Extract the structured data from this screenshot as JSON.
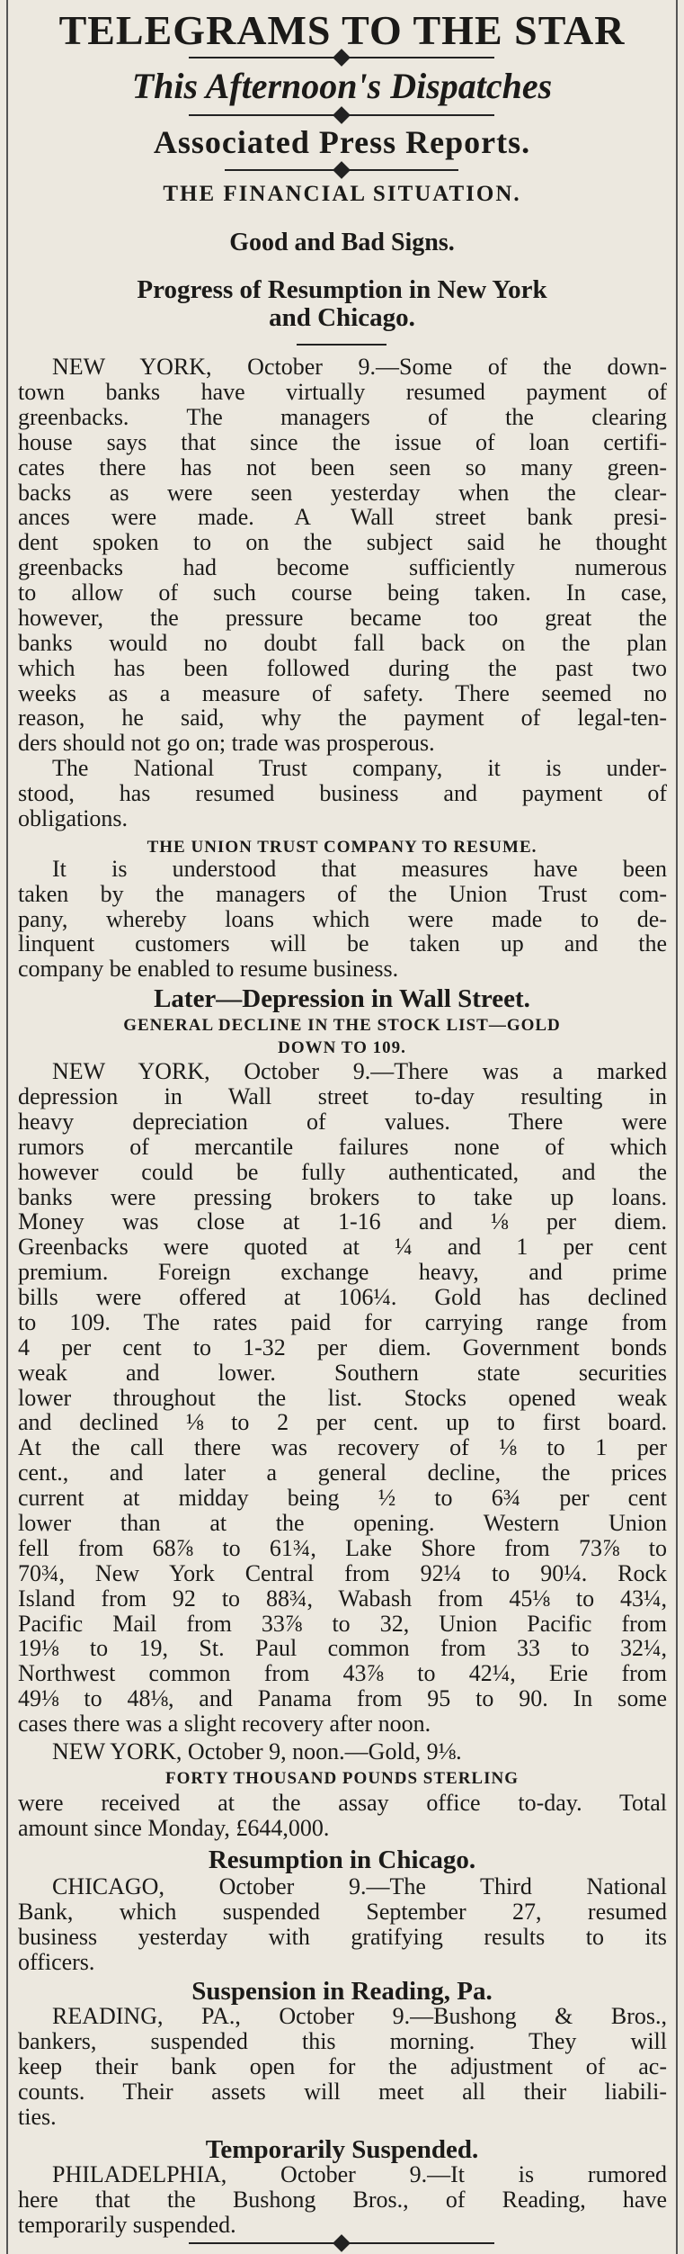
{
  "masthead": {
    "title": "TELEGRAMS TO THE STAR",
    "subtitle": "This Afternoon's Dispatches",
    "credit": "Associated Press Reports."
  },
  "section": {
    "title": "THE FINANCIAL SITUATION.",
    "deck": "Good and Bad Signs.",
    "headline": [
      "Progress of Resumption in New York",
      "and Chicago."
    ]
  },
  "new_york": {
    "paragraphs": [
      [
        "NEW YORK, October 9.—Some of the down-",
        "town banks have virtually resumed payment of",
        "greenbacks. The managers of the clearing",
        "house says that since the issue of loan certifi-",
        "cates there has not been seen so many green-",
        "backs as were seen yesterday when the clear-",
        "ances were made. A Wall street bank presi-",
        "dent spoken to on the subject said he thought",
        "greenbacks had become sufficiently numerous",
        "to allow of such course being taken. In case,",
        "however, the pressure became too great the",
        "banks would no doubt fall back on the plan",
        "which has been followed during the past two",
        "weeks as a measure of safety. There seemed no",
        "reason, he said, why the payment of legal-ten-",
        "ders should not go on; trade was prosperous."
      ],
      [
        "The National Trust company, it is under-",
        "stood, has resumed business and payment of",
        "obligations."
      ]
    ],
    "subhead": "THE UNION TRUST COMPANY TO RESUME.",
    "union_trust": [
      "It is understood that measures have been",
      "taken by the managers of the Union Trust com-",
      "pany, whereby loans which were made to de-",
      "linquent customers will be taken up and the",
      "company be enabled to resume business."
    ]
  },
  "wall_street": {
    "headline": "Later—Depression in Wall Street.",
    "subhead": [
      "GENERAL DECLINE IN THE STOCK LIST—GOLD",
      "DOWN TO 109."
    ],
    "body": [
      "NEW YORK, October 9.—There was a marked",
      "depression in Wall street to-day resulting in",
      "heavy depreciation of values. There were",
      "rumors of mercantile failures none of which",
      "however could be fully authenticated, and the",
      "banks were pressing brokers to take up loans.",
      "Money was close at 1-16 and ⅛ per diem.",
      "Greenbacks were quoted at ¼ and 1 per cent",
      "premium. Foreign exchange heavy, and prime",
      "bills were offered at 106¼. Gold has declined",
      "to 109. The rates paid for carrying range from",
      "4 per cent to 1-32 per diem. Government bonds",
      "weak and lower. Southern state securities",
      "lower throughout the list. Stocks opened weak",
      "and declined ⅛ to 2 per cent. up to first board.",
      "At the call there was recovery of ⅛ to 1 per",
      "cent., and later a general decline, the prices",
      "current at midday being ½ to 6¾ per cent",
      "lower than at the opening. Western Union",
      "fell from 68⅞ to 61¾, Lake Shore from 73⅞ to",
      "70¾, New York Central from 92¼ to 90¼. Rock",
      "Island from 92 to 88¾, Wabash from 45⅛ to 43¼,",
      "Pacific Mail from 33⅞ to 32, Union Pacific from",
      "19⅛ to 19, St. Paul common from 33 to 32¼,",
      "Northwest common from 43⅞ to 42¼, Erie from",
      "49⅛ to 48⅛, and Panama from 95 to 90. In some",
      "cases there was a slight recovery after noon."
    ],
    "noon": "NEW YORK, October 9, noon.—Gold, 9⅛.",
    "sterling_head": "FORTY THOUSAND POUNDS STERLING",
    "sterling": [
      "were received at the assay office to-day. Total",
      "amount since Monday, £644,000."
    ]
  },
  "chicago": {
    "headline": "Resumption in Chicago.",
    "body": [
      "CHICAGO, October 9.—The Third National",
      "Bank, which suspended September 27, resumed",
      "business yesterday with gratifying results to its",
      "officers."
    ]
  },
  "reading": {
    "headline": "Suspension in Reading, Pa.",
    "body": [
      "READING, PA., October 9.—Bushong & Bros.,",
      "bankers, suspended this morning. They will",
      "keep their bank open for the adjustment of ac-",
      "counts. Their assets will meet all their liabili-",
      "ties."
    ]
  },
  "philadelphia": {
    "headline": "Temporarily Suspended.",
    "body": [
      "PHILADELPHIA, October 9.—It is rumored",
      "here that the Bushong Bros., of Reading, have",
      "temporarily suspended."
    ]
  }
}
